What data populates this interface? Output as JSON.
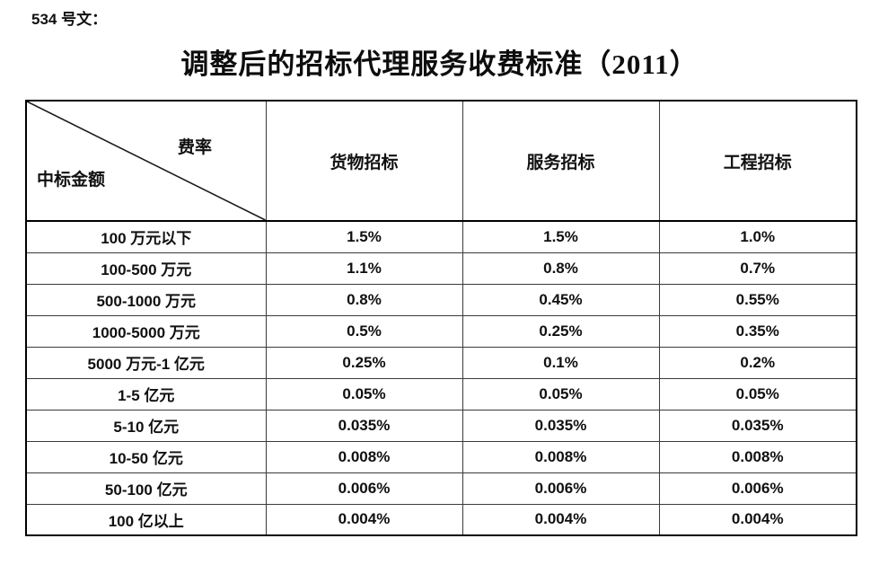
{
  "page": {
    "doc_label": "534 号文：",
    "title": "调整后的招标代理服务收费标准（2011）"
  },
  "table": {
    "corner": {
      "top_right": "费率",
      "bottom_left": "中标金额"
    },
    "columns": [
      "货物招标",
      "服务招标",
      "工程招标"
    ],
    "rows": [
      {
        "amount": "100 万元以下",
        "goods": "1.5%",
        "service": "1.5%",
        "engineering": "1.0%"
      },
      {
        "amount": "100-500 万元",
        "goods": "1.1%",
        "service": "0.8%",
        "engineering": "0.7%"
      },
      {
        "amount": "500-1000 万元",
        "goods": "0.8%",
        "service": "0.45%",
        "engineering": "0.55%"
      },
      {
        "amount": "1000-5000 万元",
        "goods": "0.5%",
        "service": "0.25%",
        "engineering": "0.35%"
      },
      {
        "amount": "5000 万元-1 亿元",
        "goods": "0.25%",
        "service": "0.1%",
        "engineering": "0.2%"
      },
      {
        "amount": "1-5 亿元",
        "goods": "0.05%",
        "service": "0.05%",
        "engineering": "0.05%"
      },
      {
        "amount": "5-10 亿元",
        "goods": "0.035%",
        "service": "0.035%",
        "engineering": "0.035%"
      },
      {
        "amount": "10-50 亿元",
        "goods": "0.008%",
        "service": "0.008%",
        "engineering": "0.008%"
      },
      {
        "amount": "50-100 亿元",
        "goods": "0.006%",
        "service": "0.006%",
        "engineering": "0.006%"
      },
      {
        "amount": "100 亿以上",
        "goods": "0.004%",
        "service": "0.004%",
        "engineering": "0.004%"
      }
    ]
  }
}
